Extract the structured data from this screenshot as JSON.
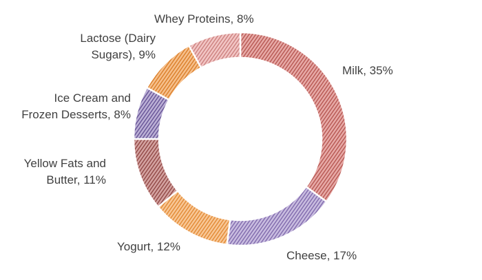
{
  "chart_data": {
    "type": "pie",
    "variant": "donut",
    "title": "",
    "legend": "none",
    "slices": [
      {
        "name": "Milk",
        "value": 35,
        "label_lines": [
          "Milk, 35%"
        ],
        "color": "#e7aaa7",
        "hatch": "#b24f4a"
      },
      {
        "name": "Cheese",
        "value": 17,
        "label_lines": [
          "Cheese, 17%"
        ],
        "color": "#c9bde0",
        "hatch": "#7a62a8"
      },
      {
        "name": "Yogurt",
        "value": 12,
        "label_lines": [
          "Yogurt, 12%"
        ],
        "color": "#f8c796",
        "hatch": "#e0832a"
      },
      {
        "name": "Yellow Fats and Butter",
        "value": 11,
        "label_lines": [
          "Yellow Fats and",
          "Butter, 11%"
        ],
        "color": "#d4a3a1",
        "hatch": "#8a3f3c"
      },
      {
        "name": "Ice Cream and Frozen Desserts",
        "value": 8,
        "label_lines": [
          "Ice Cream and",
          "Frozen Desserts, 8%"
        ],
        "color": "#bcb1d6",
        "hatch": "#5e4a90"
      },
      {
        "name": "Lactose (Dairy Sugars)",
        "value": 9,
        "label_lines": [
          "Lactose (Dairy",
          "Sugars), 9%"
        ],
        "color": "#f6c08c",
        "hatch": "#d8781f"
      },
      {
        "name": "Whey Proteins",
        "value": 8,
        "label_lines": [
          "Whey Proteins, 8%"
        ],
        "color": "#f2c6c5",
        "hatch": "#c97a78"
      }
    ]
  }
}
